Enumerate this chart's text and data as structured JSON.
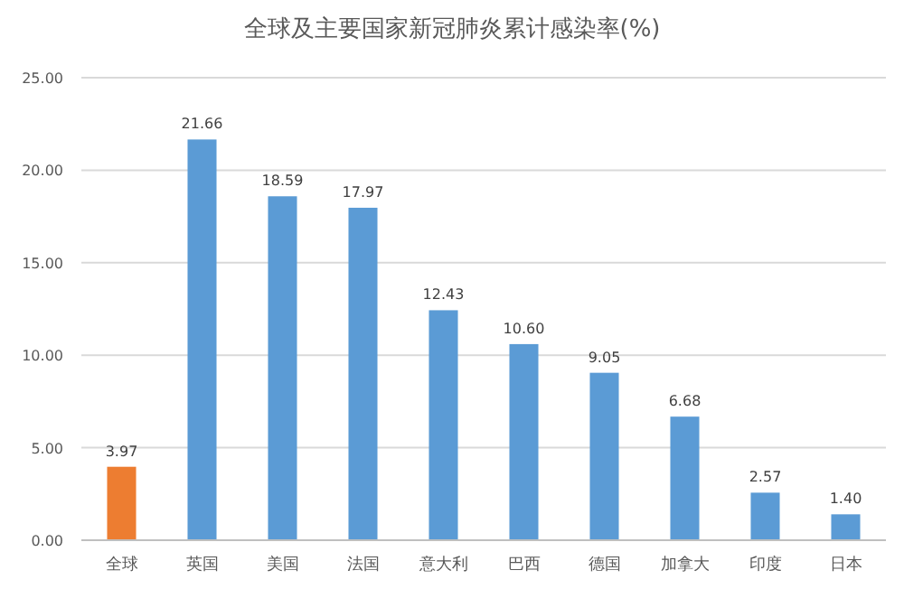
{
  "chart_data": {
    "type": "bar",
    "title": "全球及主要国家新冠肺炎累计感染率(%)",
    "categories": [
      "全球",
      "英国",
      "美国",
      "法国",
      "意大利",
      "巴西",
      "德国",
      "加拿大",
      "印度",
      "日本"
    ],
    "values": [
      3.97,
      21.66,
      18.59,
      17.97,
      12.43,
      10.6,
      9.05,
      6.68,
      2.57,
      1.4
    ],
    "value_labels": [
      "3.97",
      "21.66",
      "18.59",
      "17.97",
      "12.43",
      "10.60",
      "9.05",
      "6.68",
      "2.57",
      "1.40"
    ],
    "colors": [
      "#ed7d31",
      "#5b9bd5",
      "#5b9bd5",
      "#5b9bd5",
      "#5b9bd5",
      "#5b9bd5",
      "#5b9bd5",
      "#5b9bd5",
      "#5b9bd5",
      "#5b9bd5"
    ],
    "ylim": [
      0,
      25
    ],
    "yticks": [
      {
        "value": 0,
        "label": "0.00"
      },
      {
        "value": 5,
        "label": "5.00"
      },
      {
        "value": 10,
        "label": "10.00"
      },
      {
        "value": 15,
        "label": "15.00"
      },
      {
        "value": 20,
        "label": "20.00"
      },
      {
        "value": 25,
        "label": "25.00"
      }
    ],
    "grid": "y"
  }
}
